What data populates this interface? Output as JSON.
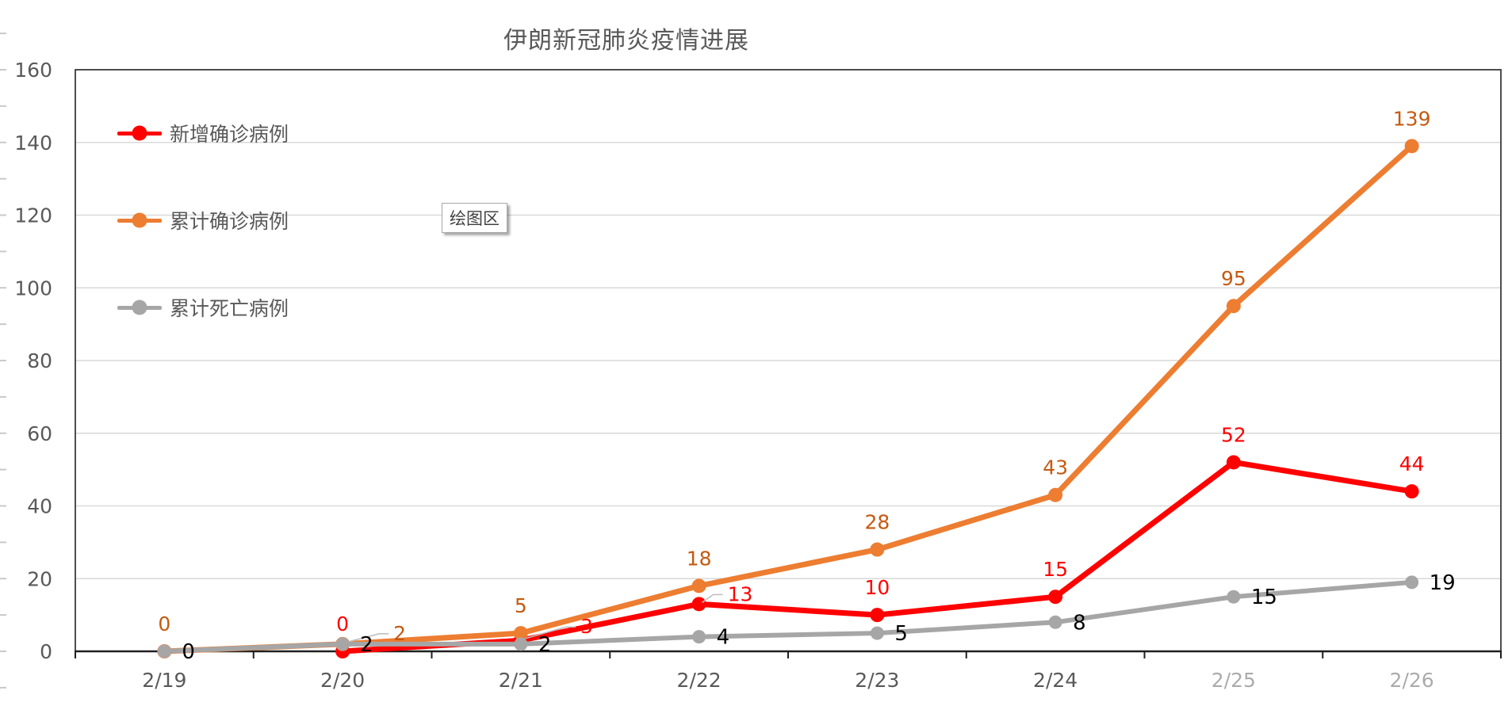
{
  "title": "伊朗新冠肺炎疫情进展",
  "plot_area_tooltip": "绘图区",
  "colors": {
    "new_cases_line": "#FF0000",
    "cumulative_cases_line": "#ED7D31",
    "cumulative_cases_label": "#C55A11",
    "deaths_line": "#A6A6A6",
    "axis_text": "#595959",
    "gridline": "#D9D9D9",
    "axis_line": "#1f1f1f",
    "plot_border": "#3b3b3b"
  },
  "legend": {
    "items": [
      {
        "label": "新增确诊病例",
        "color": "#FF0000"
      },
      {
        "label": "累计确诊病例",
        "color": "#ED7D31"
      },
      {
        "label": "累计死亡病例",
        "color": "#A6A6A6"
      }
    ]
  },
  "chart_data": {
    "type": "line",
    "title": "伊朗新冠肺炎疫情进展",
    "xlabel": "",
    "ylabel": "",
    "categories": [
      "2/19",
      "2/20",
      "2/21",
      "2/22",
      "2/23",
      "2/24",
      "2/25",
      "2/26"
    ],
    "ylim": [
      0,
      160
    ],
    "yticks": [
      0,
      20,
      40,
      60,
      80,
      100,
      120,
      140,
      160
    ],
    "grid": "horizontal",
    "legend_position": "inside-top-left",
    "ghost_category_labels": [
      "2/25",
      "2/26"
    ],
    "series": [
      {
        "name": "新增确诊病例",
        "color": "#FF0000",
        "label_color": "#FF0000",
        "line_width": 7,
        "marker_radius": 9,
        "values": [
          null,
          0,
          3,
          13,
          10,
          15,
          52,
          44
        ],
        "labels": [
          null,
          {
            "t": "0",
            "p": "above"
          },
          {
            "t": "3",
            "p": "leader",
            "dx": 75,
            "dy": -9
          },
          {
            "t": "13",
            "p": "leader",
            "dx": 36,
            "dy": -4
          },
          {
            "t": "10",
            "p": "above"
          },
          {
            "t": "15",
            "p": "above"
          },
          {
            "t": "52",
            "p": "above"
          },
          {
            "t": "44",
            "p": "above"
          }
        ]
      },
      {
        "name": "累计确诊病例",
        "color": "#ED7D31",
        "label_color": "#C55A11",
        "line_width": 7,
        "marker_radius": 9,
        "values": [
          0,
          2,
          5,
          18,
          28,
          43,
          95,
          139
        ],
        "labels": [
          {
            "t": "0",
            "p": "above"
          },
          {
            "t": "2",
            "p": "leader",
            "dx": 64,
            "dy": -5
          },
          {
            "t": "5",
            "p": "above"
          },
          {
            "t": "18",
            "p": "above"
          },
          {
            "t": "28",
            "p": "above"
          },
          {
            "t": "43",
            "p": "above"
          },
          {
            "t": "95",
            "p": "above"
          },
          {
            "t": "139",
            "p": "above"
          }
        ]
      },
      {
        "name": "累计死亡病例",
        "color": "#A6A6A6",
        "label_color": "#000000",
        "line_width": 6,
        "marker_radius": 8.5,
        "values": [
          0,
          2,
          2,
          4,
          5,
          8,
          15,
          19
        ],
        "labels": [
          {
            "t": "0",
            "p": "right"
          },
          {
            "t": "2",
            "p": "right"
          },
          {
            "t": "2",
            "p": "right"
          },
          {
            "t": "4",
            "p": "right"
          },
          {
            "t": "5",
            "p": "right"
          },
          {
            "t": "8",
            "p": "right"
          },
          {
            "t": "15",
            "p": "right"
          },
          {
            "t": "19",
            "p": "right"
          }
        ]
      }
    ]
  }
}
